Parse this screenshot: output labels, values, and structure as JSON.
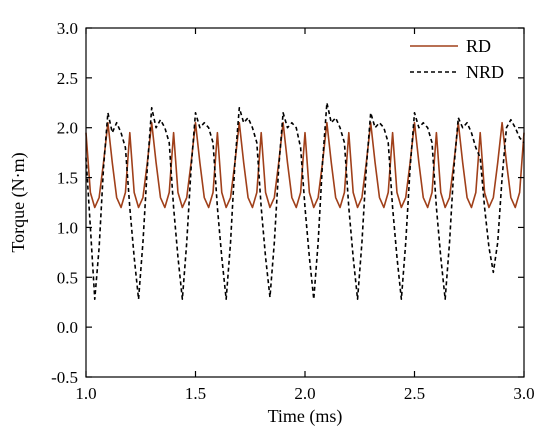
{
  "chart_data": {
    "type": "line",
    "xlabel": "Time (ms)",
    "ylabel": "Torque (N·m)",
    "xlim": [
      1.0,
      3.0
    ],
    "ylim": [
      -0.5,
      3.0
    ],
    "x_ticks": [
      "1.0",
      "1.5",
      "2.0",
      "2.5",
      "3.0"
    ],
    "y_ticks": [
      "-0.5",
      "0.0",
      "0.5",
      "1.0",
      "1.5",
      "2.0",
      "2.5",
      "3.0"
    ],
    "legend_position": "top-right",
    "grid": false,
    "series": [
      {
        "name": "RD",
        "color": "#a0401a",
        "style": "solid",
        "x": [
          1.0,
          1.02,
          1.04,
          1.06,
          1.08,
          1.1,
          1.12,
          1.14,
          1.16,
          1.18,
          1.2,
          1.22,
          1.24,
          1.26,
          1.28,
          1.3,
          1.32,
          1.34,
          1.36,
          1.38,
          1.4,
          1.42,
          1.44,
          1.46,
          1.48,
          1.5,
          1.52,
          1.54,
          1.56,
          1.58,
          1.6,
          1.62,
          1.64,
          1.66,
          1.68,
          1.7,
          1.72,
          1.74,
          1.76,
          1.78,
          1.8,
          1.82,
          1.84,
          1.86,
          1.88,
          1.9,
          1.92,
          1.94,
          1.96,
          1.98,
          2.0,
          2.02,
          2.04,
          2.06,
          2.08,
          2.1,
          2.12,
          2.14,
          2.16,
          2.18,
          2.2,
          2.22,
          2.24,
          2.26,
          2.28,
          2.3,
          2.32,
          2.34,
          2.36,
          2.38,
          2.4,
          2.42,
          2.44,
          2.46,
          2.48,
          2.5,
          2.52,
          2.54,
          2.56,
          2.58,
          2.6,
          2.62,
          2.64,
          2.66,
          2.68,
          2.7,
          2.72,
          2.74,
          2.76,
          2.78,
          2.8,
          2.82,
          2.84,
          2.86,
          2.88,
          2.9,
          2.92,
          2.94,
          2.96,
          2.98,
          3.0
        ],
        "y": [
          1.95,
          1.35,
          1.2,
          1.3,
          1.65,
          2.05,
          1.65,
          1.3,
          1.2,
          1.35,
          1.95,
          1.35,
          1.2,
          1.3,
          1.65,
          2.05,
          1.65,
          1.3,
          1.2,
          1.35,
          1.95,
          1.35,
          1.2,
          1.3,
          1.65,
          2.05,
          1.65,
          1.3,
          1.2,
          1.35,
          1.95,
          1.35,
          1.2,
          1.3,
          1.65,
          2.05,
          1.65,
          1.3,
          1.2,
          1.35,
          1.95,
          1.35,
          1.2,
          1.3,
          1.65,
          2.05,
          1.65,
          1.3,
          1.2,
          1.35,
          1.95,
          1.35,
          1.2,
          1.3,
          1.65,
          2.05,
          1.65,
          1.3,
          1.2,
          1.35,
          1.95,
          1.35,
          1.2,
          1.3,
          1.65,
          2.05,
          1.65,
          1.3,
          1.2,
          1.35,
          1.95,
          1.35,
          1.2,
          1.3,
          1.65,
          2.05,
          1.65,
          1.3,
          1.2,
          1.35,
          1.95,
          1.35,
          1.2,
          1.3,
          1.65,
          2.05,
          1.65,
          1.3,
          1.2,
          1.35,
          1.95,
          1.35,
          1.2,
          1.3,
          1.65,
          2.05,
          1.65,
          1.3,
          1.2,
          1.35,
          1.95
        ]
      },
      {
        "name": "NRD",
        "color": "#000000",
        "style": "dashed",
        "x": [
          1.0,
          1.02,
          1.04,
          1.06,
          1.08,
          1.1,
          1.12,
          1.14,
          1.16,
          1.18,
          1.2,
          1.22,
          1.24,
          1.26,
          1.28,
          1.3,
          1.32,
          1.34,
          1.36,
          1.38,
          1.4,
          1.42,
          1.44,
          1.46,
          1.48,
          1.5,
          1.52,
          1.54,
          1.56,
          1.58,
          1.6,
          1.62,
          1.64,
          1.66,
          1.68,
          1.7,
          1.72,
          1.74,
          1.76,
          1.78,
          1.8,
          1.82,
          1.84,
          1.86,
          1.88,
          1.9,
          1.92,
          1.94,
          1.96,
          1.98,
          2.0,
          2.02,
          2.04,
          2.06,
          2.08,
          2.1,
          2.12,
          2.14,
          2.16,
          2.18,
          2.2,
          2.22,
          2.24,
          2.26,
          2.28,
          2.3,
          2.32,
          2.34,
          2.36,
          2.38,
          2.4,
          2.42,
          2.44,
          2.46,
          2.48,
          2.5,
          2.52,
          2.54,
          2.56,
          2.58,
          2.6,
          2.62,
          2.64,
          2.66,
          2.68,
          2.7,
          2.72,
          2.74,
          2.76,
          2.78,
          2.8,
          2.82,
          2.84,
          2.86,
          2.88,
          2.9,
          2.92,
          2.94,
          2.96,
          2.98,
          3.0
        ],
        "y": [
          1.7,
          1.0,
          0.28,
          0.8,
          1.6,
          2.15,
          1.95,
          2.05,
          1.95,
          1.8,
          1.2,
          0.7,
          0.28,
          0.85,
          1.6,
          2.2,
          2.0,
          2.08,
          2.0,
          1.85,
          1.2,
          0.7,
          0.28,
          0.85,
          1.6,
          2.15,
          2.0,
          2.05,
          2.0,
          1.85,
          1.2,
          0.7,
          0.28,
          0.85,
          1.65,
          2.2,
          2.05,
          2.1,
          2.0,
          1.85,
          1.2,
          0.7,
          0.3,
          0.85,
          1.6,
          2.15,
          2.0,
          2.05,
          2.0,
          1.8,
          1.2,
          0.7,
          0.28,
          0.85,
          1.65,
          2.25,
          2.05,
          2.1,
          2.0,
          1.85,
          1.2,
          0.7,
          0.28,
          0.85,
          1.6,
          2.15,
          2.0,
          2.05,
          2.0,
          1.85,
          1.2,
          0.7,
          0.28,
          0.85,
          1.6,
          2.15,
          2.0,
          2.05,
          2.0,
          1.85,
          1.2,
          0.7,
          0.28,
          0.85,
          1.6,
          2.1,
          2.0,
          2.05,
          1.95,
          1.8,
          1.7,
          1.2,
          0.8,
          0.55,
          0.85,
          1.5,
          2.0,
          2.08,
          2.0,
          1.9,
          1.85
        ]
      }
    ]
  }
}
